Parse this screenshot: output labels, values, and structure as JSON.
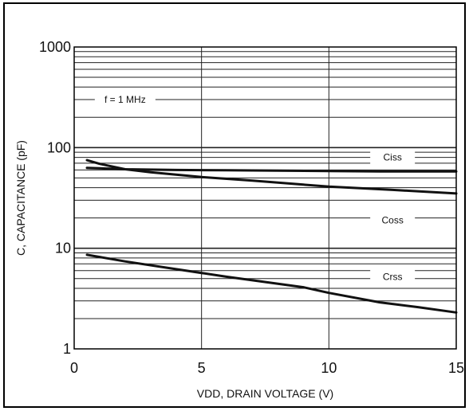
{
  "chart_data": {
    "type": "line",
    "xlabel": "VDD, DRAIN VOLTAGE (V)",
    "ylabel": "C, CAPACITANCE (pF)",
    "xlim": [
      0,
      15
    ],
    "ylim": [
      1,
      1000
    ],
    "y_scale": "log",
    "x_ticks": [
      0,
      5,
      10,
      15
    ],
    "x_tick_labels": [
      "0",
      "5",
      "10",
      "15"
    ],
    "y_ticks": [
      1,
      10,
      100,
      1000
    ],
    "y_tick_labels": [
      "1",
      "10",
      "100",
      "1000"
    ],
    "grid": true,
    "annotation": "f = 1 MHz",
    "series": [
      {
        "name": "Ciss",
        "x": [
          0.5,
          2,
          4,
          6,
          8,
          10,
          12,
          14,
          15
        ],
        "y": [
          63,
          61,
          60,
          59.5,
          59,
          58.5,
          58,
          58,
          58
        ]
      },
      {
        "name": "Coss",
        "x": [
          0.5,
          1,
          2,
          3,
          5,
          7,
          10,
          12.5,
          15
        ],
        "y": [
          75,
          69,
          61,
          57,
          51,
          47,
          41,
          38,
          35
        ]
      },
      {
        "name": "Crss",
        "x": [
          0.5,
          2,
          4,
          6,
          9,
          10,
          12,
          13.5,
          15
        ],
        "y": [
          8.6,
          7.4,
          6.2,
          5.2,
          4.1,
          3.6,
          2.9,
          2.6,
          2.3
        ]
      }
    ],
    "series_label_positions": {
      "Ciss": [
        12.5,
        80
      ],
      "Coss": [
        12.5,
        19
      ],
      "Crss": [
        12.5,
        5.2
      ]
    },
    "colors": {
      "line": "#111111",
      "grid": "#222222",
      "frame": "#000000"
    }
  }
}
